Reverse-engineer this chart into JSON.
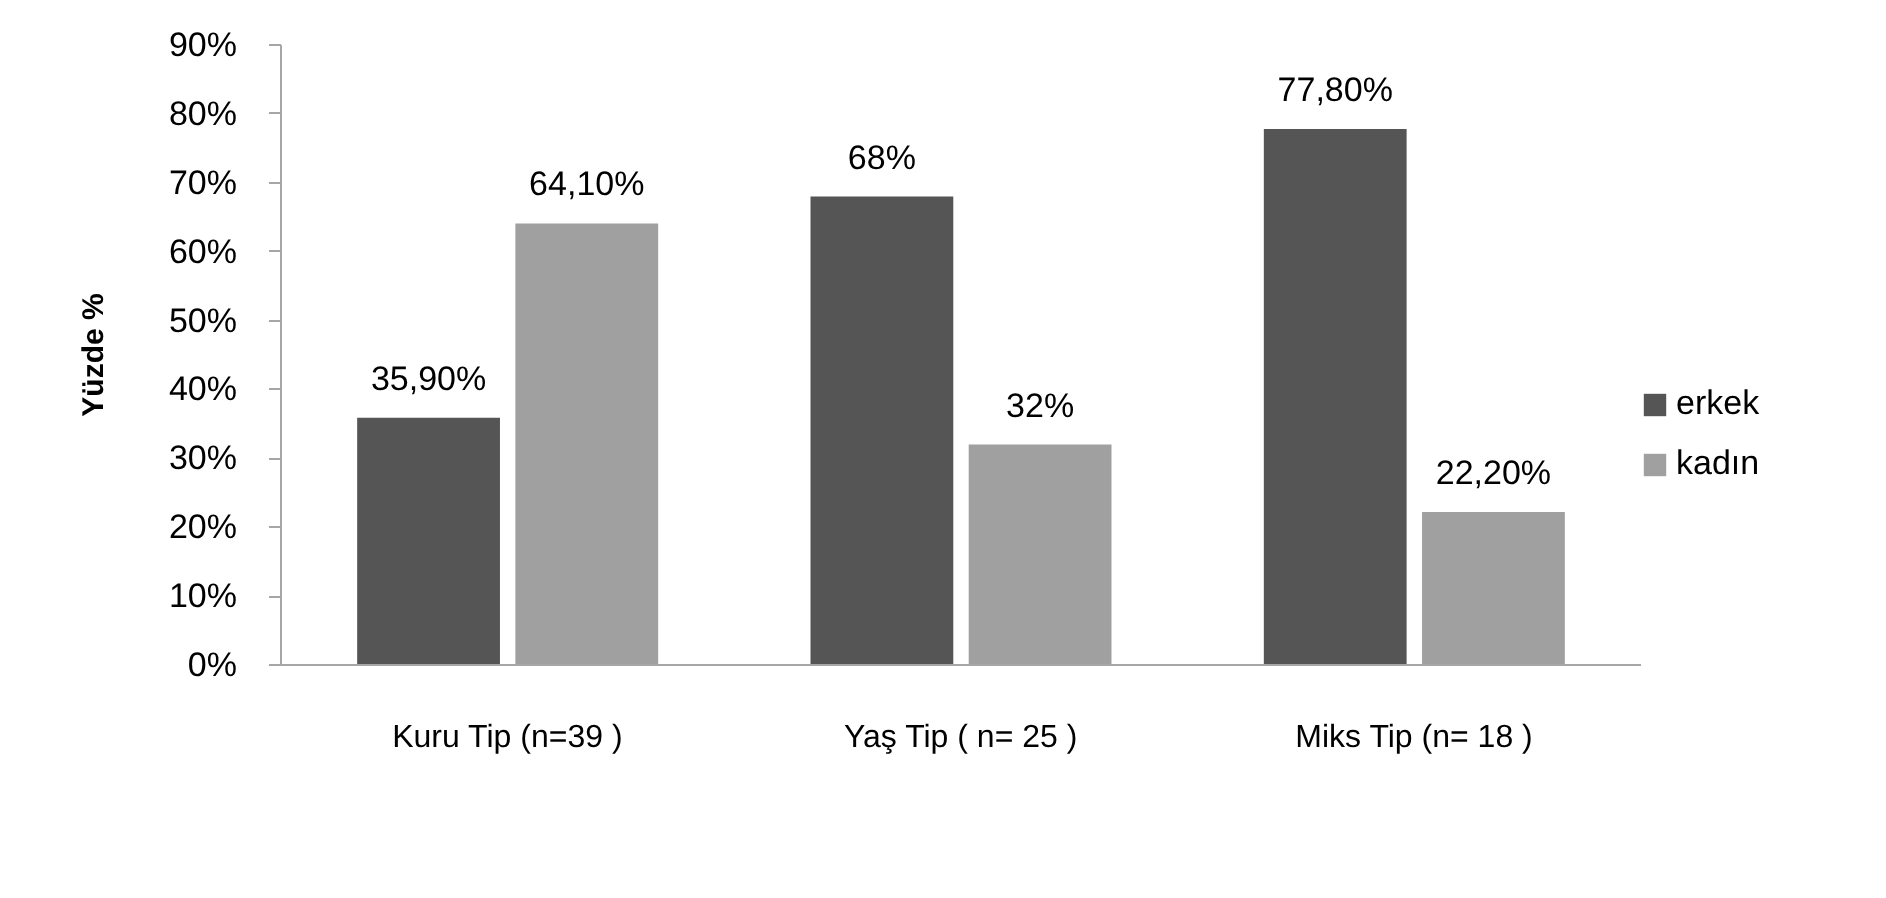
{
  "chart_data": {
    "type": "bar",
    "ylabel": "Yüzde %",
    "categories": [
      "Kuru Tip (n=39 )",
      "Yaş Tip ( n= 25 )",
      "Miks Tip (n= 18 )"
    ],
    "series": [
      {
        "name": "erkek",
        "color": "#555555",
        "values": [
          35.9,
          68,
          77.8
        ],
        "value_labels": [
          "35,90%",
          "68%",
          "77,80%"
        ]
      },
      {
        "name": "kadın",
        "color": "#a0a0a0",
        "values": [
          64.1,
          32,
          22.2
        ],
        "value_labels": [
          "64,10%",
          "32%",
          "22,20%"
        ]
      }
    ],
    "ylim": [
      0,
      90
    ],
    "yticks": [
      {
        "value": 0,
        "label": "0%"
      },
      {
        "value": 10,
        "label": "10%"
      },
      {
        "value": 20,
        "label": "20%"
      },
      {
        "value": 30,
        "label": "30%"
      },
      {
        "value": 40,
        "label": "40%"
      },
      {
        "value": 50,
        "label": "50%"
      },
      {
        "value": 60,
        "label": "60%"
      },
      {
        "value": 70,
        "label": "70%"
      },
      {
        "value": 80,
        "label": "80%"
      },
      {
        "value": 90,
        "label": "90%"
      }
    ],
    "grid": false,
    "legend": "right"
  }
}
